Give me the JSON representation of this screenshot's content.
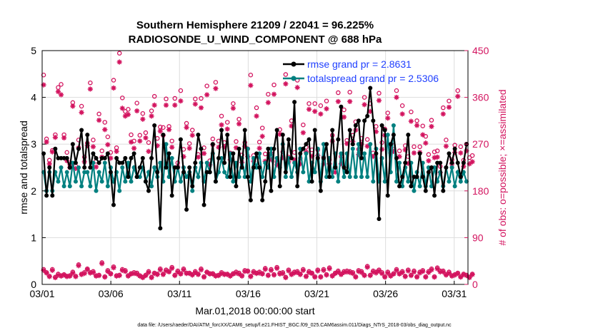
{
  "chart_data": {
    "type": "line",
    "title": "Southern Hemisphere 21209 / 22041 = 96.225%",
    "subtitle": "RADIOSONDE_U_WIND_COMPONENT @ 688 hPa",
    "xlabel": "Mar.01,2018 00:00:00 start",
    "ylabel_left": "rmse and totalspread",
    "ylabel_right": "# of obs: o=possible; ×=assimilated",
    "footnote": "data file: /Users/raeder/DAI/ATM_forcXX/CAM6_setup/f.e21.FHIST_BGC.f09_025.CAM6assim.011/Diags_NTrS_2018-03/obs_diag_output.nc",
    "x_ticks": [
      {
        "day": 1,
        "label": "03/01"
      },
      {
        "day": 6,
        "label": "03/06"
      },
      {
        "day": 11,
        "label": "03/11"
      },
      {
        "day": 16,
        "label": "03/16"
      },
      {
        "day": 21,
        "label": "03/21"
      },
      {
        "day": 26,
        "label": "03/26"
      },
      {
        "day": 31,
        "label": "03/31"
      }
    ],
    "xlim": [
      1,
      32
    ],
    "ylim_left": [
      0,
      5
    ],
    "yticks_left": [
      "0",
      "1",
      "2",
      "3",
      "4",
      "5"
    ],
    "ylim_right": [
      0,
      450
    ],
    "yticks_right": [
      "0",
      "90",
      "180",
      "270",
      "360",
      "450"
    ],
    "colors": {
      "rmse": "#000000",
      "spread": "#008080",
      "obs": "#d3145f",
      "legend_text": "#1f3fff",
      "grid": "#dddddd"
    },
    "series": [
      {
        "name": "rmse grand pr = 2.8631",
        "values": [
          2.8,
          1.9,
          2.5,
          1.9,
          2.9,
          2.7,
          2.7,
          2.7,
          2.7,
          2.5,
          3.0,
          2.6,
          2.9,
          3.3,
          2.5,
          3.2,
          2.5,
          2.8,
          2.7,
          2.6,
          2.7,
          2.7,
          2.8,
          2.4,
          1.7,
          2.7,
          2.6,
          2.6,
          2.7,
          2.3,
          2.7,
          2.8,
          2.3,
          2.5,
          2.7,
          2.2,
          2.0,
          2.7,
          3.4,
          2.4,
          1.2,
          3.2,
          2.5,
          2.8,
          1.9,
          2.5,
          2.5,
          3.1,
          2.4,
          1.6,
          2.5,
          2.1,
          2.6,
          3.2,
          2.9,
          1.7,
          2.4,
          2.4,
          3.0,
          2.2,
          2.7,
          3.3,
          2.6,
          3.2,
          2.3,
          2.8,
          2.1,
          2.9,
          2.5,
          3.3,
          2.3,
          1.8,
          2.5,
          2.8,
          2.5,
          1.8,
          2.2,
          2.9,
          2.0,
          2.9,
          3.3,
          2.1,
          3.2,
          2.4,
          3.1,
          2.7,
          3.9,
          2.1,
          2.8,
          2.9,
          3.0,
          3.1,
          2.2,
          3.3,
          2.7,
          2.0,
          2.7,
          3.0,
          2.3,
          3.3,
          2.5,
          3.1,
          3.8,
          2.5,
          2.4,
          3.3,
          3.0,
          3.4,
          3.5,
          2.7,
          3.5,
          3.6,
          4.2,
          3.5,
          2.8,
          1.4,
          3.4,
          3.3,
          1.9,
          3.0,
          3.2,
          2.7,
          2.1,
          2.3,
          2.6,
          3.2,
          2.1,
          2.3,
          2.3,
          2.8,
          2.3,
          2.0,
          2.4,
          2.5,
          1.9,
          2.6,
          2.6,
          2.0,
          2.5,
          2.8,
          2.6,
          2.9,
          2.6,
          2.3,
          2.6,
          3.0
        ],
        "color": "#000000",
        "marker": "star"
      },
      {
        "name": "totalspread grand pr = 2.5306",
        "values": [
          2.4,
          2.0,
          2.4,
          2.0,
          2.4,
          2.2,
          2.5,
          2.1,
          2.4,
          2.1,
          2.6,
          2.2,
          2.5,
          2.1,
          2.4,
          2.4,
          2.1,
          2.6,
          2.0,
          2.4,
          2.2,
          2.6,
          2.1,
          2.5,
          2.2,
          2.4,
          2.0,
          2.5,
          2.2,
          2.6,
          2.2,
          2.5,
          2.3,
          2.3,
          2.5,
          2.2,
          2.4,
          2.1,
          2.5,
          2.3,
          2.6,
          2.2,
          3.0,
          2.3,
          2.7,
          2.2,
          2.5,
          2.2,
          2.5,
          2.3,
          2.4,
          2.0,
          2.5,
          2.3,
          2.6,
          2.2,
          2.6,
          2.4,
          2.8,
          2.2,
          2.4,
          2.7,
          2.4,
          2.3,
          2.8,
          2.2,
          2.6,
          2.3,
          2.7,
          2.3,
          2.9,
          2.2,
          2.7,
          2.5,
          2.8,
          2.3,
          2.6,
          2.5,
          2.9,
          2.3,
          2.7,
          2.5,
          3.0,
          2.3,
          2.7,
          2.3,
          2.6,
          2.4,
          2.9,
          2.4,
          2.8,
          2.2,
          2.6,
          2.4,
          2.9,
          2.2,
          3.0,
          2.3,
          2.7,
          2.3,
          2.8,
          2.2,
          2.8,
          2.3,
          2.8,
          2.3,
          2.9,
          2.3,
          3.0,
          2.3,
          2.8,
          2.3,
          3.0,
          2.2,
          2.9,
          2.2,
          2.7,
          2.2,
          3.2,
          2.4,
          3.4,
          2.2,
          2.6,
          2.1,
          2.5,
          2.2,
          2.6,
          2.0,
          2.4,
          2.1,
          2.6,
          2.1,
          2.5,
          2.1,
          2.5,
          2.2,
          2.4,
          2.1,
          2.5,
          2.2,
          2.5,
          2.1,
          2.4,
          2.2,
          2.4,
          2.2
        ],
        "color": "#008080",
        "marker": "circle"
      }
    ],
    "obs_possible": [
      403,
      280,
      239,
      258,
      288,
      379,
      385,
      288,
      254,
      231,
      350,
      228,
      278,
      343,
      245,
      272,
      388,
      278,
      237,
      328,
      257,
      312,
      284,
      254,
      393,
      263,
      445,
      359,
      333,
      337,
      288,
      276,
      349,
      287,
      329,
      292,
      273,
      334,
      362,
      281,
      303,
      302,
      357,
      304,
      276,
      358,
      234,
      373,
      260,
      310,
      271,
      297,
      357,
      250,
      358,
      263,
      382,
      238,
      280,
      389,
      276,
      324,
      273,
      312,
      253,
      348,
      275,
      318,
      249,
      273,
      261,
      403,
      248,
      340,
      274,
      301,
      251,
      366,
      252,
      384,
      236,
      298,
      255,
      404,
      245,
      315,
      254,
      393,
      243,
      307,
      264,
      348,
      259,
      348,
      259,
      344,
      245,
      353,
      240,
      287,
      226,
      369,
      246,
      336,
      277,
      370,
      287,
      313,
      260,
      281,
      360,
      279,
      348,
      253,
      304,
      368,
      273,
      299,
      330,
      262,
      267,
      373,
      257,
      344,
      267,
      246,
      332,
      265,
      315,
      265,
      305,
      285,
      250,
      316,
      255,
      257,
      227,
      340,
      278,
      353,
      240,
      268,
      373,
      265,
      239,
      270,
      244,
      248
    ],
    "obs_assimilated": [
      384,
      274,
      232,
      255,
      283,
      371,
      365,
      282,
      238,
      225,
      343,
      223,
      263,
      331,
      236,
      267,
      376,
      265,
      226,
      316,
      245,
      298,
      269,
      243,
      378,
      256,
      428,
      339,
      324,
      327,
      274,
      262,
      334,
      276,
      318,
      282,
      256,
      324,
      345,
      267,
      295,
      287,
      345,
      298,
      264,
      345,
      226,
      353,
      246,
      302,
      262,
      287,
      347,
      245,
      340,
      252,
      365,
      230,
      269,
      377,
      264,
      307,
      265,
      299,
      240,
      339,
      263,
      309,
      235,
      266,
      246,
      383,
      237,
      324,
      262,
      285,
      237,
      350,
      240,
      366,
      230,
      289,
      244,
      386,
      236,
      305,
      240,
      379,
      232,
      292,
      255,
      337,
      247,
      333,
      248,
      328,
      232,
      338,
      232,
      276,
      216,
      352,
      232,
      322,
      271,
      352,
      275,
      297,
      250,
      270,
      346,
      266,
      333,
      246,
      294,
      354,
      260,
      287,
      320,
      253,
      256,
      360,
      246,
      328,
      259,
      233,
      314,
      253,
      306,
      254,
      288,
      272,
      238,
      304,
      244,
      245,
      215,
      328,
      266,
      341,
      232,
      254,
      362,
      253,
      227,
      257,
      232,
      236
    ],
    "obs_possible_bottom": [
      29,
      23,
      16,
      29,
      14,
      20,
      17,
      19,
      16,
      17,
      24,
      16,
      38,
      20,
      23,
      30,
      23,
      25,
      17,
      18,
      42,
      15,
      27,
      21,
      34,
      17,
      18,
      29,
      27,
      17,
      21,
      23,
      22,
      17,
      14,
      18,
      25,
      14,
      22,
      20,
      30,
      20,
      28,
      25,
      33,
      18,
      26,
      21,
      30,
      22,
      22,
      19,
      25,
      20,
      30,
      15,
      24,
      21,
      21,
      17,
      18,
      23,
      20,
      20,
      17,
      21,
      24,
      22,
      17,
      27,
      26,
      16,
      25,
      22,
      24,
      21,
      31,
      18,
      29,
      19,
      33,
      22,
      23,
      14,
      28,
      20,
      24,
      25,
      20,
      29,
      16,
      25,
      22,
      15,
      28,
      15,
      29,
      19,
      32,
      17,
      22,
      26,
      20,
      25,
      26,
      25,
      23,
      15,
      27,
      25,
      18,
      35,
      18,
      26,
      24,
      28,
      23,
      15,
      24,
      17,
      21,
      29,
      21,
      25,
      16,
      28,
      18,
      26,
      15,
      24,
      27,
      15,
      25,
      30,
      15,
      32,
      26,
      26,
      19,
      24,
      17,
      19,
      22,
      15,
      20,
      18,
      14,
      20
    ],
    "obs_assimilated_bottom": [
      27,
      22,
      15,
      27,
      13,
      18,
      16,
      18,
      15,
      16,
      22,
      15,
      36,
      19,
      21,
      29,
      22,
      23,
      16,
      17,
      40,
      14,
      25,
      20,
      32,
      16,
      17,
      27,
      25,
      16,
      20,
      21,
      20,
      16,
      13,
      17,
      23,
      13,
      21,
      19,
      28,
      19,
      26,
      24,
      31,
      17,
      24,
      20,
      28,
      21,
      21,
      18,
      23,
      19,
      28,
      14,
      23,
      20,
      20,
      16,
      17,
      21,
      19,
      19,
      16,
      20,
      22,
      20,
      16,
      25,
      25,
      15,
      23,
      21,
      22,
      20,
      29,
      17,
      27,
      18,
      31,
      20,
      21,
      13,
      26,
      19,
      22,
      23,
      19,
      27,
      15,
      23,
      21,
      14,
      26,
      14,
      27,
      18,
      30,
      16,
      21,
      24,
      19,
      23,
      24,
      23,
      21,
      14,
      25,
      23,
      17,
      33,
      17,
      24,
      22,
      26,
      21,
      14,
      22,
      16,
      20,
      27,
      20,
      23,
      15,
      26,
      17,
      24,
      14,
      22,
      25,
      14,
      23,
      28,
      14,
      30,
      24,
      24,
      18,
      22,
      16,
      18,
      21,
      14,
      19,
      17,
      13,
      19
    ]
  }
}
